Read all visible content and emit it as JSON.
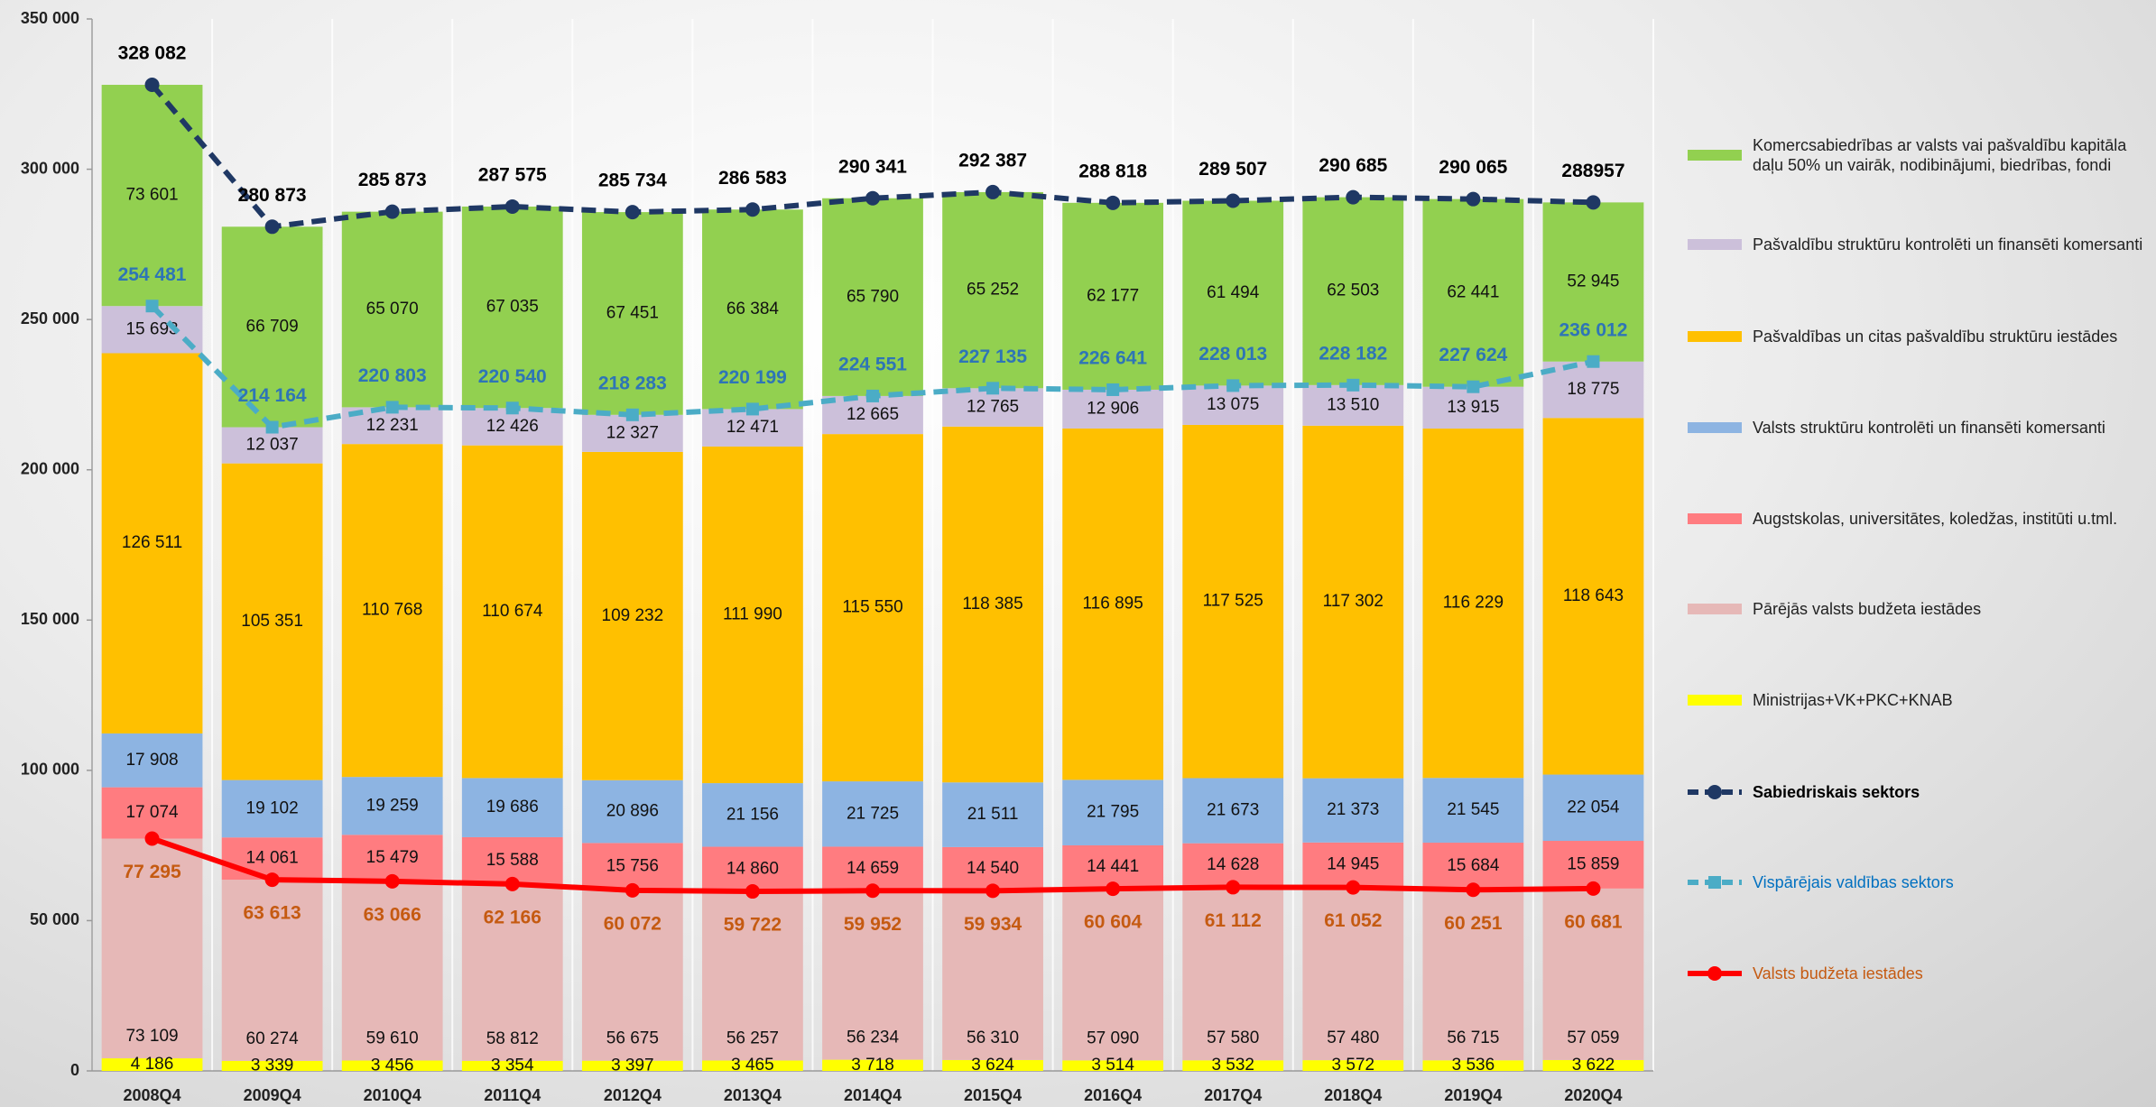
{
  "chart_data": {
    "type": "bar",
    "stacked": true,
    "categories": [
      "2008Q4",
      "2009Q4",
      "2010Q4",
      "2011Q4",
      "2012Q4",
      "2013Q4",
      "2014Q4",
      "2015Q4",
      "2016Q4",
      "2017Q4",
      "2018Q4",
      "2019Q4",
      "2020Q4"
    ],
    "ylim": [
      0,
      350000
    ],
    "yticks": [
      0,
      {
        "value": 50000,
        "label": "50 000"
      },
      {
        "value": 100000,
        "label": "100 000"
      },
      {
        "value": 150000,
        "label": "150 000"
      },
      {
        "value": 200000,
        "label": "200 000"
      },
      {
        "value": 250000,
        "label": "250 000"
      },
      {
        "value": 300000,
        "label": "300 000"
      },
      {
        "value": 350000,
        "label": "350 000"
      }
    ],
    "grid": false,
    "legend": "right",
    "series": [
      {
        "name": "Ministrijas+VK+PKC+KNAB",
        "type": "bar",
        "color": "#ffff00",
        "values": [
          4186,
          3339,
          3456,
          3354,
          3397,
          3465,
          3718,
          3624,
          3514,
          3532,
          3572,
          3536,
          3622
        ],
        "value_labels": [
          "4 186",
          "3 339",
          "3 456",
          "3 354",
          "3 397",
          "3 465",
          "3 718",
          "3 624",
          "3 514",
          "3 532",
          "3 572",
          "3 536",
          "3 622"
        ]
      },
      {
        "name": "Pārējās valsts budžeta iestādes",
        "type": "bar",
        "color": "#e6b8b7",
        "values": [
          73109,
          60274,
          59610,
          58812,
          56675,
          56257,
          56234,
          56310,
          57090,
          57580,
          57480,
          56715,
          57059
        ],
        "value_labels": [
          "73 109",
          "60 274",
          "59 610",
          "58 812",
          "56 675",
          "56 257",
          "56 234",
          "56 310",
          "57 090",
          "57 580",
          "57 480",
          "56 715",
          "57 059"
        ]
      },
      {
        "name": "Augstskolas, universitātes, koledžas, institūti u.tml.",
        "type": "bar",
        "color": "#ff7c80",
        "values": [
          17074,
          14061,
          15479,
          15588,
          15756,
          14860,
          14659,
          14540,
          14441,
          14628,
          14945,
          15684,
          15859
        ],
        "value_labels": [
          "17 074",
          "14 061",
          "15 479",
          "15 588",
          "15 756",
          "14 860",
          "14 659",
          "14 540",
          "14 441",
          "14 628",
          "14 945",
          "15 684",
          "15 859"
        ]
      },
      {
        "name": "Valsts struktūru kontrolēti un finansēti komersanti",
        "type": "bar",
        "color": "#8db4e2",
        "values": [
          17908,
          19102,
          19259,
          19686,
          20896,
          21156,
          21725,
          21511,
          21795,
          21673,
          21373,
          21545,
          22054
        ],
        "value_labels": [
          "17 908",
          "19 102",
          "19 259",
          "19 686",
          "20 896",
          "21 156",
          "21 725",
          "21 511",
          "21 795",
          "21 673",
          "21 373",
          "21 545",
          "22 054"
        ]
      },
      {
        "name": "Pašvaldības un citas pašvaldību struktūru iestādes",
        "type": "bar",
        "color": "#ffc000",
        "values": [
          126511,
          105351,
          110768,
          110674,
          109232,
          111990,
          115550,
          118385,
          116895,
          117525,
          117302,
          116229,
          118643
        ],
        "value_labels": [
          "126 511",
          "105 351",
          "110 768",
          "110 674",
          "109 232",
          "111 990",
          "115 550",
          "118 385",
          "116 895",
          "117 525",
          "117 302",
          "116 229",
          "118 643"
        ]
      },
      {
        "name": "Pašvaldību struktūru kontrolēti un finansēti komersanti",
        "type": "bar",
        "color": "#ccc0da",
        "values": [
          15693,
          12037,
          12231,
          12426,
          12327,
          12471,
          12665,
          12765,
          12906,
          13075,
          13510,
          13915,
          18775
        ],
        "value_labels": [
          "15 693",
          "12 037",
          "12 231",
          "12 426",
          "12 327",
          "12 471",
          "12 665",
          "12 765",
          "12 906",
          "13 075",
          "13 510",
          "13 915",
          "18 775"
        ]
      },
      {
        "name": "Komercsabiedrības ar valsts vai pašvaldību kapitāla daļu 50% un vairāk, nodibinājumi, biedrības, fondi",
        "type": "bar",
        "color": "#92d050",
        "values": [
          73601,
          66709,
          65070,
          67035,
          67451,
          66384,
          65790,
          65252,
          62177,
          61494,
          62503,
          62441,
          52945
        ],
        "value_labels": [
          "73 601",
          "66 709",
          "65 070",
          "67 035",
          "67 451",
          "66 384",
          "65 790",
          "65 252",
          "62 177",
          "61 494",
          "62 503",
          "62 441",
          "52 945"
        ]
      },
      {
        "name": "Sabiedriskais sektors",
        "type": "line",
        "color": "#1f3864",
        "dashed": true,
        "marker": "circle",
        "label_color": "#000000",
        "values": [
          328082,
          280873,
          285873,
          287575,
          285734,
          286583,
          290341,
          292387,
          288818,
          289507,
          290685,
          290065,
          288957
        ],
        "value_labels": [
          "328 082",
          "280 873",
          "285 873",
          "287 575",
          "285 734",
          "286 583",
          "290 341",
          "292 387",
          "288 818",
          "289 507",
          "290 685",
          "290 065",
          "288957"
        ]
      },
      {
        "name": "Vispārējais valdības sektors",
        "type": "line",
        "color": "#4bacc6",
        "dashed": true,
        "marker": "square",
        "label_color": "#2e75b6",
        "values": [
          254481,
          214164,
          220803,
          220540,
          218283,
          220199,
          224551,
          227135,
          226641,
          228013,
          228182,
          227624,
          236012
        ],
        "value_labels": [
          "254 481",
          "214 164",
          "220 803",
          "220 540",
          "218 283",
          "220 199",
          "224 551",
          "227 135",
          "226 641",
          "228 013",
          "228 182",
          "227 624",
          "236 012"
        ]
      },
      {
        "name": "Valsts budžeta iestādes",
        "type": "line",
        "color": "#ff0000",
        "dashed": false,
        "marker": "circle",
        "label_color": "#c55a11",
        "values": [
          77295,
          63613,
          63066,
          62166,
          60072,
          59722,
          59952,
          59934,
          60604,
          61112,
          61052,
          60251,
          60681
        ],
        "value_labels": [
          "77 295",
          "63 613",
          "63 066",
          "62 166",
          "60 072",
          "59 722",
          "59 952",
          "59 934",
          "60 604",
          "61 112",
          "61 052",
          "60 251",
          "60 681"
        ]
      }
    ]
  }
}
